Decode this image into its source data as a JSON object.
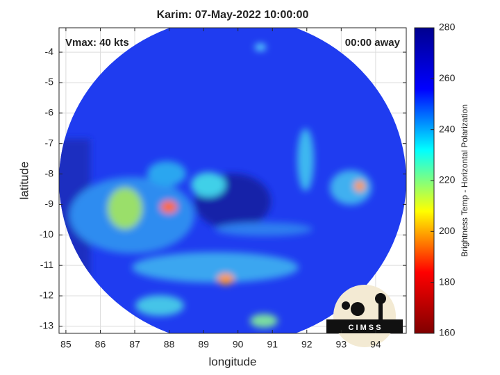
{
  "chart_data": {
    "type": "image",
    "title": "Karim: 07-May-2022 10:00:00",
    "annotations": [
      "Vmax: 40 kts",
      "00:00 away"
    ],
    "xlabel": "longitude",
    "ylabel": "latitude",
    "xlim": [
      84.8,
      94.89
    ],
    "ylim": [
      -13.23,
      -3.2
    ],
    "xticks": [
      85,
      86,
      87,
      88,
      89,
      90,
      91,
      92,
      93,
      94
    ],
    "yticks": [
      -13,
      -12,
      -11,
      -10,
      -9,
      -8,
      -7,
      -6,
      -5,
      -4
    ],
    "grid": true,
    "colorbar": {
      "label": "Brightness Temp - Horizontal Polarization",
      "lim": [
        160,
        280
      ],
      "ticks": [
        160,
        180,
        200,
        220,
        240,
        260,
        280
      ],
      "colormap": [
        "#800000",
        "#ff0000",
        "#ffff00",
        "#00ffff",
        "#0000ff",
        "#00008f"
      ]
    },
    "logo": "C I M S S"
  }
}
